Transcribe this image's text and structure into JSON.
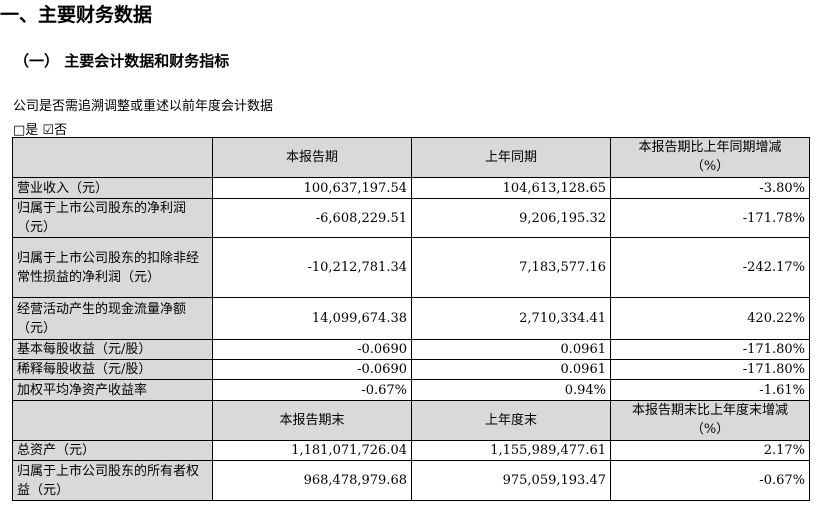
{
  "title": "一、主要财务数据",
  "subtitle": "（一） 主要会计数据和财务指标",
  "question": "公司是否需追溯调整或重述以前年度会计数据",
  "options": {
    "yes": "□是",
    "no": "☑否"
  },
  "table1": {
    "headers": [
      "",
      "本报告期",
      "上年同期",
      "本报告期比上年同期增减（%）"
    ],
    "rows": [
      [
        "营业收入（元）",
        "100,637,197.54",
        "104,613,128.65",
        "-3.80%"
      ],
      [
        "归属于上市公司股东的净利润（元）",
        "-6,608,229.51",
        "9,206,195.32",
        "-171.78%"
      ],
      [
        "归属于上市公司股东的扣除非经常性损益的净利润（元）",
        "-10,212,781.34",
        "7,183,577.16",
        "-242.17%"
      ],
      [
        "经营活动产生的现金流量净额（元）",
        "14,099,674.38",
        "2,710,334.41",
        "420.22%"
      ],
      [
        "基本每股收益（元/股）",
        "-0.0690",
        "0.0961",
        "-171.80%"
      ],
      [
        "稀释每股收益（元/股）",
        "-0.0690",
        "0.0961",
        "-171.80%"
      ],
      [
        "加权平均净资产收益率",
        "-0.67%",
        "0.94%",
        "-1.61%"
      ]
    ]
  },
  "table2": {
    "headers": [
      "",
      "本报告期末",
      "上年度末",
      "本报告期末比上年度末增减（%）"
    ],
    "rows": [
      [
        "总资产（元）",
        "1,181,071,726.04",
        "1,155,989,477.61",
        "2.17%"
      ],
      [
        "归属于上市公司股东的所有者权益（元）",
        "968,478,979.68",
        "975,059,193.47",
        "-0.67%"
      ]
    ]
  }
}
